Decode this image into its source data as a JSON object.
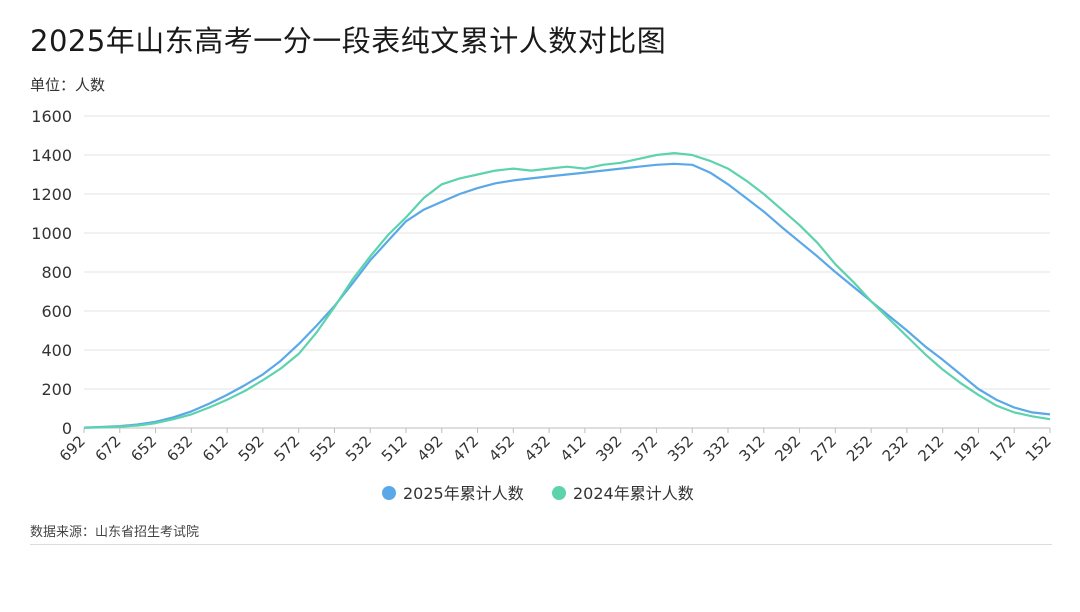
{
  "title": "2025年山东高考一分一段表纯文累计人数对比图",
  "unit_label": "单位：人数",
  "source": "数据来源：山东省招生考试院",
  "chart_data": {
    "type": "line",
    "title": "2025年山东高考一分一段表纯文累计人数对比图",
    "ylabel": "单位：人数",
    "xlabel": "",
    "x_range": [
      692,
      152
    ],
    "x_reversed": true,
    "x_ticks": [
      692,
      672,
      652,
      632,
      612,
      592,
      572,
      552,
      532,
      512,
      492,
      472,
      452,
      432,
      412,
      392,
      372,
      352,
      332,
      312,
      292,
      272,
      252,
      232,
      212,
      192,
      172,
      152
    ],
    "ylim": [
      0,
      1600
    ],
    "y_ticks": [
      0,
      200,
      400,
      600,
      800,
      1000,
      1200,
      1400,
      1600
    ],
    "grid": true,
    "legend_position": "bottom",
    "series": [
      {
        "name": "2025年累计人数",
        "color": "#5aa8e8",
        "x": [
          692,
          682,
          672,
          662,
          652,
          642,
          632,
          622,
          612,
          602,
          592,
          582,
          572,
          562,
          552,
          542,
          532,
          522,
          512,
          502,
          492,
          482,
          472,
          462,
          452,
          442,
          432,
          422,
          412,
          402,
          392,
          382,
          372,
          362,
          352,
          342,
          332,
          322,
          312,
          302,
          292,
          282,
          272,
          262,
          252,
          242,
          232,
          222,
          212,
          202,
          192,
          182,
          172,
          162,
          152
        ],
        "y": [
          2,
          5,
          10,
          18,
          32,
          55,
          85,
          125,
          170,
          220,
          275,
          345,
          430,
          525,
          625,
          740,
          860,
          960,
          1060,
          1120,
          1160,
          1200,
          1230,
          1255,
          1270,
          1280,
          1290,
          1300,
          1310,
          1320,
          1330,
          1340,
          1350,
          1355,
          1350,
          1310,
          1250,
          1180,
          1110,
          1030,
          955,
          880,
          800,
          725,
          650,
          575,
          500,
          420,
          350,
          275,
          200,
          145,
          105,
          80,
          70
        ]
      },
      {
        "name": "2024年累计人数",
        "color": "#5dd3ad",
        "x": [
          692,
          682,
          672,
          662,
          652,
          642,
          632,
          622,
          612,
          602,
          592,
          582,
          572,
          562,
          552,
          542,
          532,
          522,
          512,
          502,
          492,
          482,
          472,
          462,
          452,
          442,
          432,
          422,
          412,
          402,
          392,
          382,
          372,
          362,
          352,
          342,
          332,
          322,
          312,
          302,
          292,
          282,
          272,
          262,
          252,
          242,
          232,
          222,
          212,
          202,
          192,
          182,
          172,
          162,
          152
        ],
        "y": [
          1,
          3,
          7,
          13,
          25,
          45,
          70,
          105,
          145,
          190,
          245,
          305,
          380,
          490,
          620,
          760,
          880,
          990,
          1080,
          1180,
          1250,
          1280,
          1300,
          1320,
          1330,
          1320,
          1330,
          1340,
          1330,
          1350,
          1360,
          1380,
          1400,
          1410,
          1400,
          1370,
          1330,
          1270,
          1200,
          1120,
          1040,
          950,
          840,
          750,
          650,
          560,
          470,
          380,
          300,
          230,
          170,
          115,
          80,
          60,
          45
        ]
      }
    ]
  }
}
